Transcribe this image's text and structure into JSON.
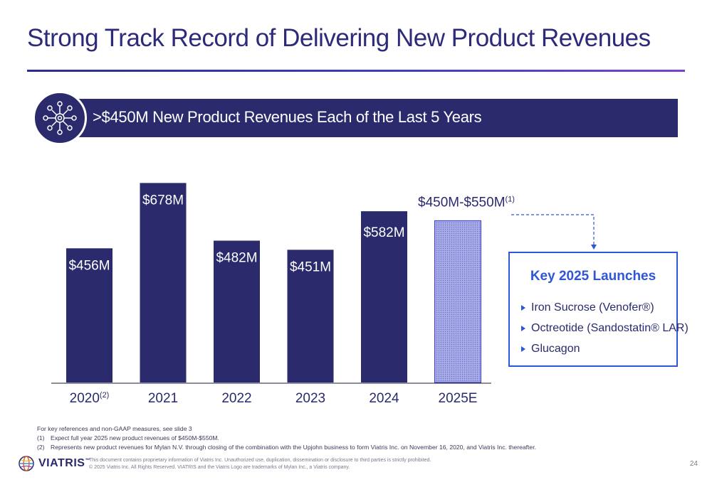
{
  "title": "Strong Track Record of Delivering New Product Revenues",
  "banner": {
    "text": ">$450M New Product Revenues Each of the Last 5 Years",
    "icon": "network-icon"
  },
  "chart_data": {
    "type": "bar",
    "categories": [
      "2020",
      "2021",
      "2022",
      "2023",
      "2024",
      "2025E"
    ],
    "category_superscripts": [
      "(2)",
      "",
      "",
      "",
      "",
      ""
    ],
    "values": [
      456,
      678,
      482,
      451,
      582,
      550
    ],
    "value_labels": [
      "$456M",
      "$678M",
      "$482M",
      "$451M",
      "$582M",
      "$450M-$550M"
    ],
    "value_label_superscripts": [
      "",
      "",
      "",
      "",
      "",
      "(1)"
    ],
    "estimate_range": [
      450,
      550
    ],
    "estimate_index": 5,
    "title": "",
    "xlabel": "",
    "ylabel": "",
    "ylim": [
      0,
      720
    ],
    "grid": false,
    "colors": {
      "bar": "#2b2a6c",
      "estimate_fill": "#9ea2e2",
      "estimate_border": "#3a3fbf",
      "label_light": "#ffffff",
      "label_dark": "#2a2a6e"
    }
  },
  "launches": {
    "title": "Key 2025 Launches",
    "items": [
      {
        "label": "Iron Sucrose (Venofer®)"
      },
      {
        "label": "Octreotide (Sandostatin® LAR)"
      },
      {
        "label": "Glucagon"
      }
    ],
    "bullet_icon": "triangle-bullet-icon",
    "accent": "#2f56d6"
  },
  "notes": {
    "intro": "For key references and non-GAAP measures, see slide 3",
    "items": [
      {
        "num": "(1)",
        "text": "Expect full year 2025 new product revenues of $450M-$550M."
      },
      {
        "num": "(2)",
        "text": "Represents new product revenues for Mylan N.V. through closing of the combination with the Upjohn business to form Viatris Inc. on November 16, 2020, and Viatris Inc. thereafter."
      }
    ]
  },
  "footer": {
    "logo_text": "VIATRIS",
    "logo_tm": "™",
    "legal_1": "This document contains proprietary information of Viatris Inc. Unauthorized use, duplication, dissemination or disclosure to third parties is strictly prohibited.",
    "legal_2": "© 2025 Viatris Inc. All Rights Reserved. VIATRIS and the Viatris Logo are trademarks of Mylan Inc., a Viatris company.",
    "page_number": "24"
  }
}
